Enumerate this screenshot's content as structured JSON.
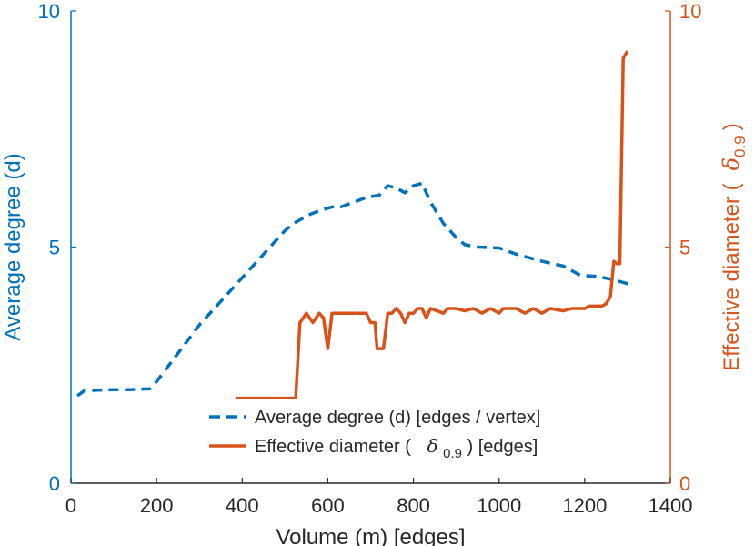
{
  "chart_data": {
    "type": "line",
    "xlabel": "Volume (m) [edges]",
    "xlim": [
      0,
      1400
    ],
    "xticks": [
      "0",
      "200",
      "400",
      "600",
      "800",
      "1000",
      "1200",
      "1400"
    ],
    "y_left": {
      "label": "Average degree (d)",
      "lim": [
        0,
        10
      ],
      "ticks": [
        "0",
        "5",
        "10"
      ],
      "color": "#0072BD"
    },
    "y_right": {
      "label_main": "Effective diameter (",
      "label_symbol": "δ",
      "label_sub": "0.9",
      "label_close": ")",
      "lim": [
        0,
        10
      ],
      "ticks": [
        "0",
        "5",
        "10"
      ],
      "color": "#D95319"
    },
    "series": [
      {
        "name": "Average degree (d) [edges / vertex]",
        "axis": "left",
        "style": "dashed",
        "color": "#0072BD",
        "points": [
          [
            15,
            1.85
          ],
          [
            30,
            1.95
          ],
          [
            60,
            1.97
          ],
          [
            100,
            1.98
          ],
          [
            140,
            1.98
          ],
          [
            185,
            2.0
          ],
          [
            200,
            2.15
          ],
          [
            250,
            2.75
          ],
          [
            300,
            3.35
          ],
          [
            350,
            3.85
          ],
          [
            400,
            4.35
          ],
          [
            450,
            4.85
          ],
          [
            500,
            5.35
          ],
          [
            520,
            5.5
          ],
          [
            560,
            5.7
          ],
          [
            590,
            5.8
          ],
          [
            610,
            5.85
          ],
          [
            630,
            5.85
          ],
          [
            660,
            5.95
          ],
          [
            690,
            6.05
          ],
          [
            720,
            6.1
          ],
          [
            740,
            6.3
          ],
          [
            760,
            6.25
          ],
          [
            780,
            6.15
          ],
          [
            800,
            6.3
          ],
          [
            820,
            6.35
          ],
          [
            840,
            5.95
          ],
          [
            870,
            5.5
          ],
          [
            900,
            5.2
          ],
          [
            920,
            5.05
          ],
          [
            950,
            5.0
          ],
          [
            1000,
            4.98
          ],
          [
            1040,
            4.85
          ],
          [
            1060,
            4.8
          ],
          [
            1100,
            4.7
          ],
          [
            1150,
            4.6
          ],
          [
            1190,
            4.4
          ],
          [
            1230,
            4.38
          ],
          [
            1270,
            4.3
          ],
          [
            1310,
            4.2
          ]
        ]
      },
      {
        "name": "Effective diameter",
        "legend_main": "Effective diameter (",
        "legend_symbol": "δ",
        "legend_sub": "0.9",
        "legend_close": ") [edges]",
        "axis": "right",
        "style": "solid",
        "color": "#D95319",
        "points": [
          [
            385,
            1.8
          ],
          [
            525,
            1.8
          ],
          [
            535,
            3.4
          ],
          [
            550,
            3.6
          ],
          [
            565,
            3.4
          ],
          [
            580,
            3.6
          ],
          [
            590,
            3.5
          ],
          [
            600,
            2.85
          ],
          [
            610,
            3.6
          ],
          [
            690,
            3.6
          ],
          [
            700,
            3.4
          ],
          [
            710,
            3.4
          ],
          [
            715,
            2.85
          ],
          [
            730,
            2.85
          ],
          [
            740,
            3.6
          ],
          [
            750,
            3.6
          ],
          [
            760,
            3.7
          ],
          [
            770,
            3.6
          ],
          [
            780,
            3.4
          ],
          [
            790,
            3.6
          ],
          [
            800,
            3.6
          ],
          [
            810,
            3.7
          ],
          [
            820,
            3.7
          ],
          [
            830,
            3.5
          ],
          [
            840,
            3.7
          ],
          [
            870,
            3.6
          ],
          [
            880,
            3.7
          ],
          [
            900,
            3.7
          ],
          [
            920,
            3.65
          ],
          [
            940,
            3.7
          ],
          [
            960,
            3.6
          ],
          [
            980,
            3.7
          ],
          [
            1000,
            3.6
          ],
          [
            1010,
            3.7
          ],
          [
            1040,
            3.7
          ],
          [
            1060,
            3.6
          ],
          [
            1080,
            3.7
          ],
          [
            1100,
            3.6
          ],
          [
            1120,
            3.7
          ],
          [
            1150,
            3.65
          ],
          [
            1170,
            3.7
          ],
          [
            1200,
            3.7
          ],
          [
            1210,
            3.75
          ],
          [
            1240,
            3.75
          ],
          [
            1250,
            3.8
          ],
          [
            1260,
            3.95
          ],
          [
            1268,
            4.7
          ],
          [
            1275,
            4.65
          ],
          [
            1282,
            4.65
          ],
          [
            1290,
            9.0
          ],
          [
            1300,
            9.15
          ]
        ]
      }
    ],
    "legend_position": "lower-middle"
  }
}
